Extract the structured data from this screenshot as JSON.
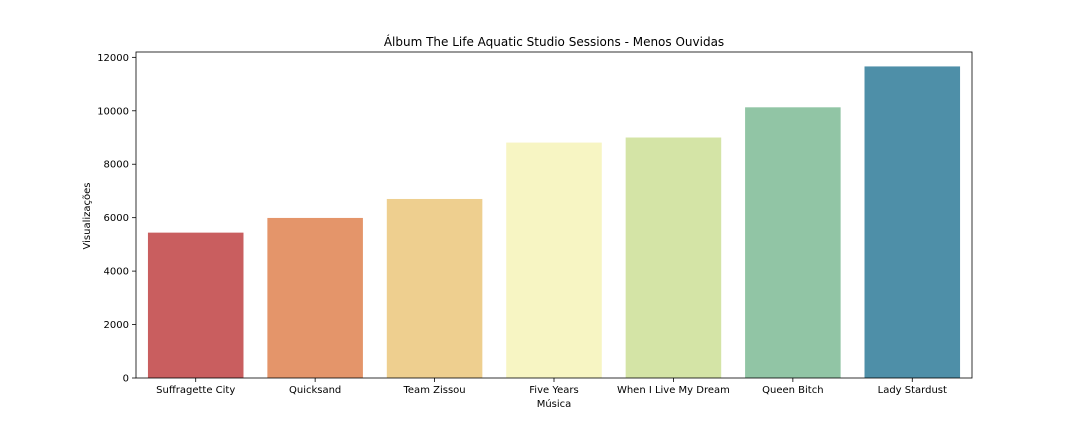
{
  "chart_data": {
    "type": "bar",
    "title": "Álbum The Life Aquatic Studio Sessions - Menos Ouvidas",
    "xlabel": "Música",
    "ylabel": "Visualizações",
    "categories": [
      "Suffragette City",
      "Quicksand",
      "Team Zissou",
      "Five Years",
      "When I Live My Dream",
      "Queen Bitch",
      "Lady Stardust"
    ],
    "values": [
      5440,
      5990,
      6700,
      8810,
      9000,
      10130,
      11660
    ],
    "colors": [
      "#c95e5f",
      "#e4956a",
      "#eecf8f",
      "#f7f5c3",
      "#d4e4a6",
      "#91c5a5",
      "#4e8fa8"
    ],
    "ylim": [
      0,
      12200
    ],
    "yticks": [
      0,
      2000,
      4000,
      6000,
      8000,
      10000,
      12000
    ],
    "grid": false,
    "legend": "none"
  }
}
